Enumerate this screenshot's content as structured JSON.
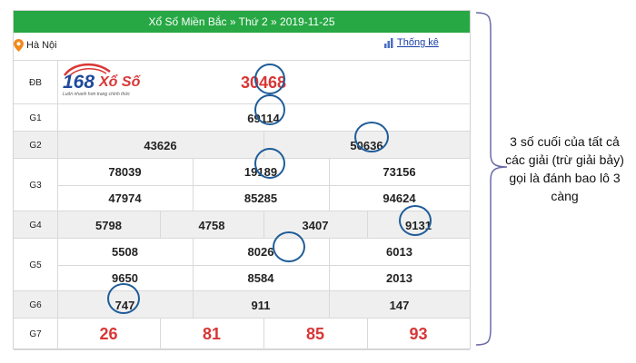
{
  "header": {
    "title": "Xổ Số Miền Bắc » Thứ 2 » 2019-11-25",
    "location": "Hà Nội",
    "stats_link": "Thống kê"
  },
  "logo": {
    "number": "168",
    "brand": "Xổ Số",
    "tagline": "Luôn nhanh hơn trang chính thức"
  },
  "prizes": [
    {
      "label": "ĐB",
      "values": [
        "30468"
      ]
    },
    {
      "label": "G1",
      "values": [
        "69114"
      ]
    },
    {
      "label": "G2",
      "values": [
        "43626",
        "50636"
      ]
    },
    {
      "label": "G3",
      "values": [
        "78039",
        "19189",
        "73156",
        "47974",
        "85285",
        "94624"
      ]
    },
    {
      "label": "G4",
      "values": [
        "5798",
        "4758",
        "3407",
        "9131"
      ]
    },
    {
      "label": "G5",
      "values": [
        "5508",
        "8026",
        "6013",
        "9650",
        "8584",
        "2013"
      ]
    },
    {
      "label": "G6",
      "values": [
        "747",
        "911",
        "147"
      ]
    },
    {
      "label": "G7",
      "values": [
        "26",
        "81",
        "85",
        "93"
      ]
    }
  ],
  "annotation": "3 số cuối của tất cả các giải (trừ giải bảy) gọi là đánh bao lô 3 càng",
  "colors": {
    "title_bar": "#27a844",
    "red_number": "#d93636",
    "circle": "#1f5d99",
    "brace": "#6b6ba8"
  }
}
